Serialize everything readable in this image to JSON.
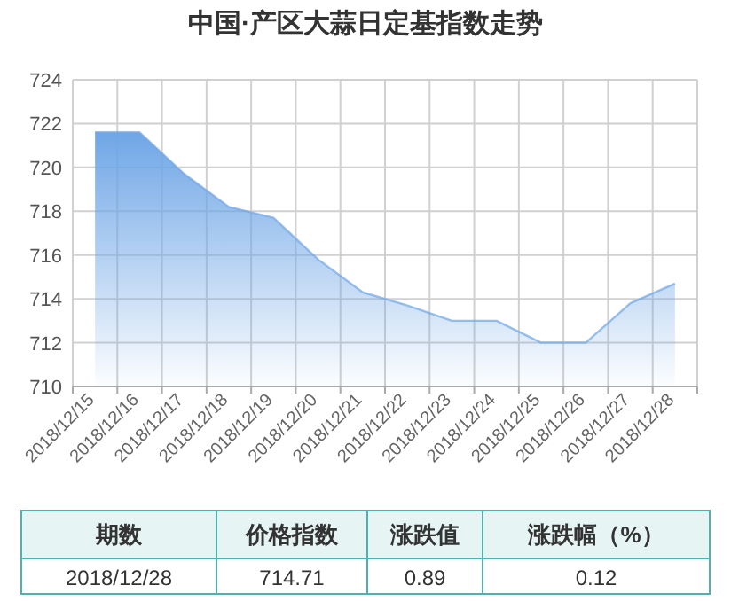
{
  "chart_data": [
    {
      "type": "area",
      "title": "中国·产区大蒜日定基指数走势",
      "categories": [
        "2018/12/15",
        "2018/12/16",
        "2018/12/17",
        "2018/12/18",
        "2018/12/19",
        "2018/12/20",
        "2018/12/21",
        "2018/12/22",
        "2018/12/23",
        "2018/12/24",
        "2018/12/25",
        "2018/12/26",
        "2018/12/27",
        "2018/12/28"
      ],
      "series": [
        {
          "color": "#6fa6e6",
          "values": [
            721.6,
            721.6,
            719.7,
            718.2,
            717.7,
            715.8,
            714.3,
            713.7,
            713.0,
            713.0,
            712.0,
            712.0,
            713.8,
            714.7
          ]
        }
      ],
      "ylim": [
        710,
        724
      ],
      "yticks": [
        710,
        712,
        714,
        716,
        718,
        720,
        722,
        724
      ],
      "grid": true,
      "marker": "none"
    },
    {
      "type": "other",
      "categories": [
        "期数",
        "价格指数",
        "涨跌值",
        "涨跌幅（%）"
      ],
      "annotations": [
        "2018/12/28",
        "714.71",
        "0.89",
        "0.12"
      ]
    }
  ]
}
